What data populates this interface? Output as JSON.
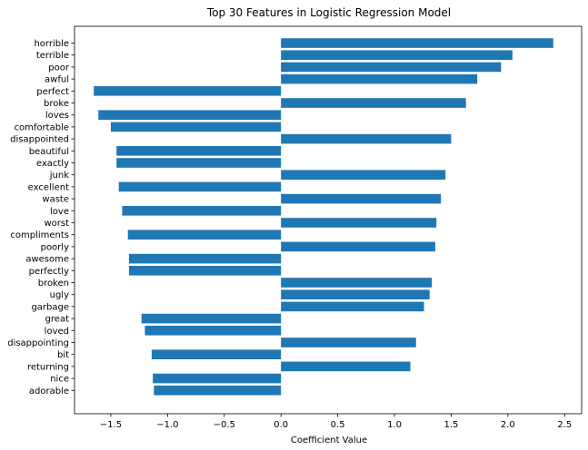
{
  "chart_data": {
    "type": "bar",
    "orientation": "horizontal",
    "title": "Top 30 Features in Logistic Regression Model",
    "xlabel": "Coefficient Value",
    "ylabel": "",
    "xlim": [
      -1.82,
      2.65
    ],
    "xticks": [
      -1.5,
      -1.0,
      -0.5,
      0.0,
      0.5,
      1.0,
      1.5,
      2.0,
      2.5
    ],
    "xtick_labels": [
      "−1.5",
      "−1.0",
      "−0.5",
      "0.0",
      "0.5",
      "1.0",
      "1.5",
      "2.0",
      "2.5"
    ],
    "bar_color": "#1f77b4",
    "grid": false,
    "categories": [
      "horrible",
      "terrible",
      "poor",
      "awful",
      "perfect",
      "broke",
      "loves",
      "comfortable",
      "disappointed",
      "beautiful",
      "exactly",
      "junk",
      "excellent",
      "waste",
      "love",
      "worst",
      "compliments",
      "poorly",
      "awesome",
      "perfectly",
      "broken",
      "ugly",
      "garbage",
      "great",
      "loved",
      "disappointing",
      "bit",
      "returning",
      "nice",
      "adorable"
    ],
    "values": [
      2.4,
      2.04,
      1.94,
      1.73,
      -1.65,
      1.63,
      -1.61,
      -1.5,
      1.5,
      -1.45,
      -1.45,
      1.45,
      -1.43,
      1.41,
      -1.4,
      1.37,
      -1.35,
      1.36,
      -1.34,
      -1.34,
      1.33,
      1.31,
      1.26,
      -1.23,
      -1.2,
      1.19,
      -1.14,
      1.14,
      -1.13,
      -1.12
    ]
  }
}
